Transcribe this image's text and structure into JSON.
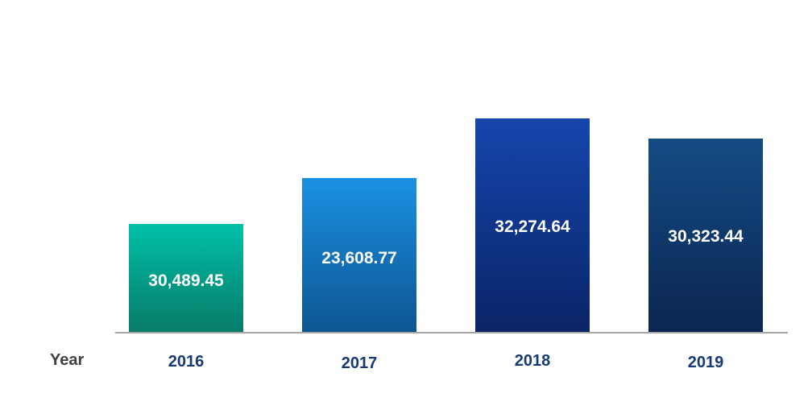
{
  "chart_data": {
    "type": "bar",
    "xlabel": "Year",
    "categories": [
      "2016",
      "2017",
      "2018",
      "2019"
    ],
    "values": [
      30489.45,
      23608.77,
      32274.64,
      30323.44
    ],
    "value_labels": [
      "30,489.45",
      "23,608.77",
      "32,274.64",
      "30,323.44"
    ],
    "bar_colors": [
      {
        "top": "#00c0a8",
        "bottom": "#077a67"
      },
      {
        "top": "#1a90e2",
        "bottom": "#0d5591"
      },
      {
        "top": "#1546ad",
        "bottom": "#0a2466"
      },
      {
        "top": "#144c85",
        "bottom": "#0b2550"
      }
    ],
    "grid": false,
    "legend": "none"
  }
}
